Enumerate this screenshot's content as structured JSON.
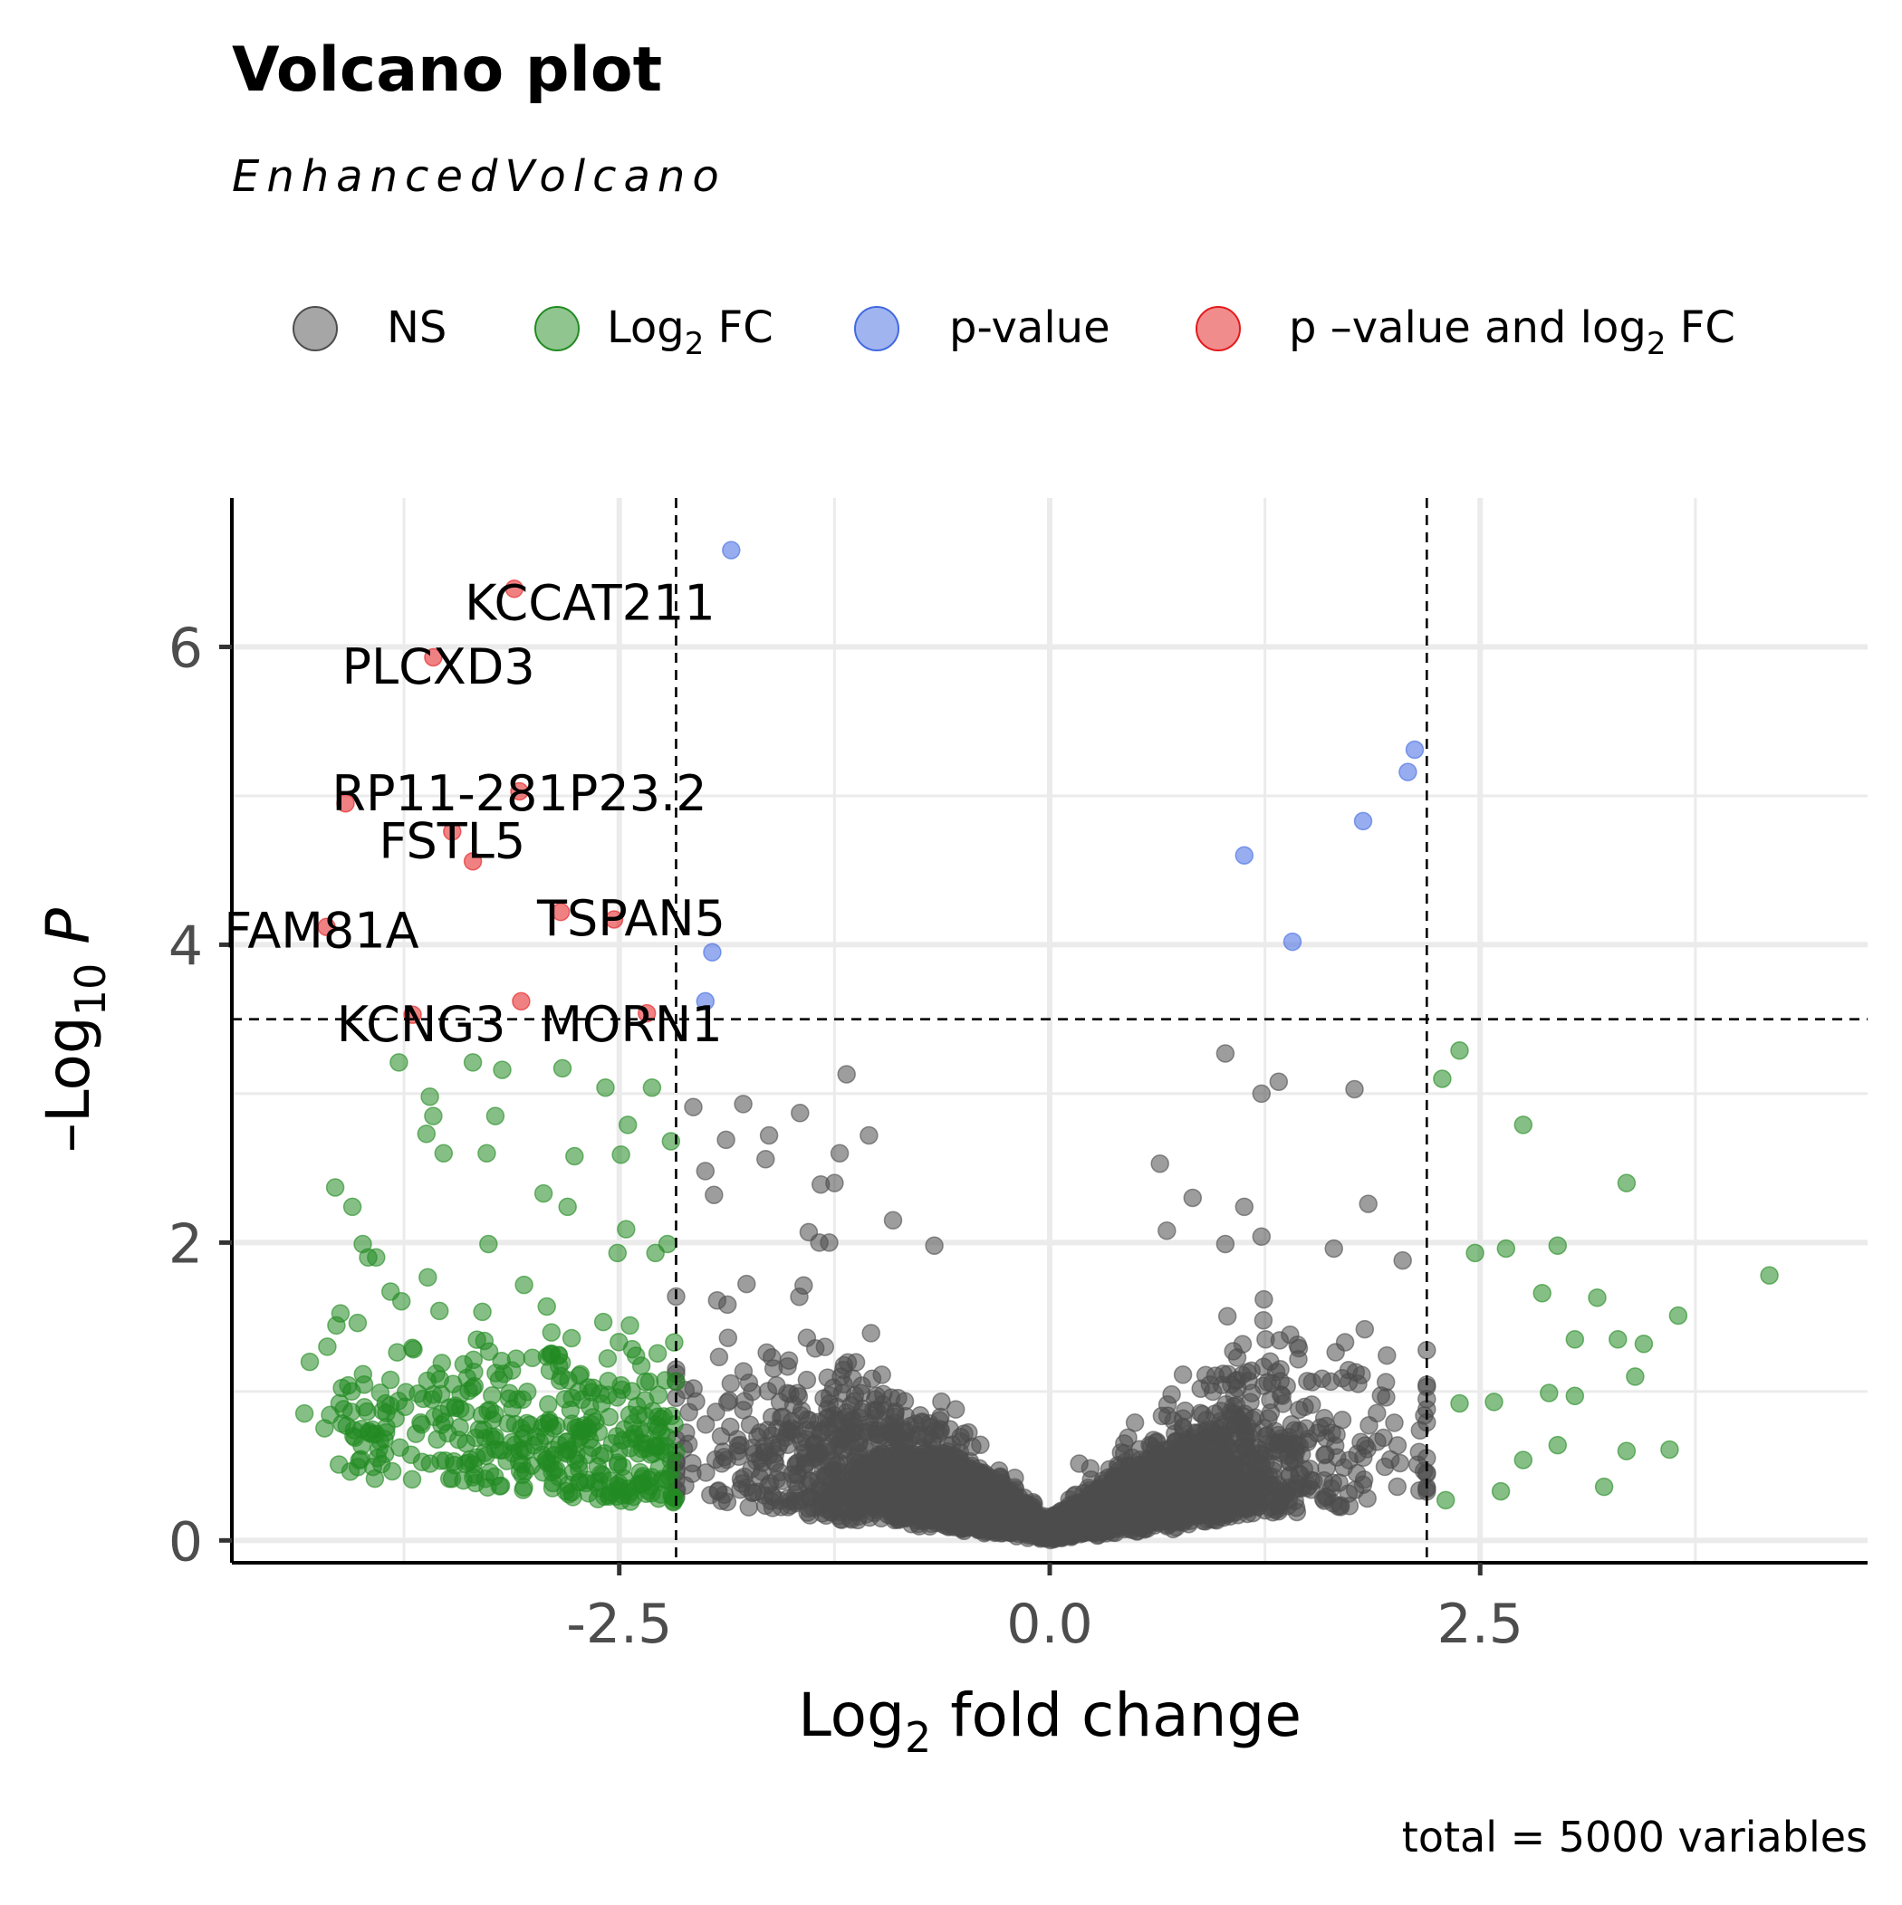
{
  "chart_data": {
    "type": "scatter",
    "title": "Volcano plot",
    "subtitle": "EnhancedVolcano",
    "caption": "total = 5000 variables",
    "xlabel": {
      "base": "Log",
      "sub": "2",
      "rest": " fold change"
    },
    "ylabel": {
      "prefix": "–Log",
      "sub": "10",
      "rest": " P"
    },
    "xlim": [
      -4.75,
      4.75
    ],
    "ylim": [
      -0.15,
      7.0
    ],
    "x_ticks": [
      {
        "value": -2.5,
        "label": "-2.5"
      },
      {
        "value": 0.0,
        "label": "0.0"
      },
      {
        "value": 2.5,
        "label": "2.5"
      }
    ],
    "y_ticks": [
      {
        "value": 0,
        "label": "0"
      },
      {
        "value": 2,
        "label": "2"
      },
      {
        "value": 4,
        "label": "4"
      },
      {
        "value": 6,
        "label": "6"
      }
    ],
    "x_minor_grid": [
      -3.75,
      -1.25,
      1.25,
      3.75
    ],
    "y_minor_grid": [
      1,
      3,
      5
    ],
    "grid": true,
    "legend_position": "top",
    "legend": [
      {
        "key": "NS",
        "base": "NS",
        "sub": "",
        "rest": "",
        "color": "#4d4d4d"
      },
      {
        "key": "FC",
        "base": "Log",
        "sub": "2",
        "rest": " FC",
        "color": "#228b22"
      },
      {
        "key": "P",
        "base": "p-value",
        "sub": "",
        "rest": "",
        "color": "#4169e1"
      },
      {
        "key": "P_FC",
        "base": "p –value and log",
        "sub": "2",
        "rest": " FC",
        "color": "#e31a1c"
      }
    ],
    "cutoffs": {
      "fc": [
        -2.17,
        2.19
      ],
      "p": 3.5
    },
    "series": [
      {
        "key": "P_FC",
        "points": [
          [
            -3.11,
            6.39
          ],
          [
            -3.58,
            5.93
          ],
          [
            -4.09,
            4.95
          ],
          [
            -3.08,
            5.03
          ],
          [
            -3.47,
            4.76
          ],
          [
            -3.35,
            4.56
          ],
          [
            -4.2,
            4.12
          ],
          [
            -2.84,
            4.22
          ],
          [
            -2.53,
            4.17
          ],
          [
            -3.07,
            3.62
          ],
          [
            -3.7,
            3.53
          ],
          [
            -2.34,
            3.54
          ]
        ]
      },
      {
        "key": "P",
        "points": [
          [
            -1.85,
            6.65
          ],
          [
            2.12,
            5.31
          ],
          [
            2.08,
            5.16
          ],
          [
            1.82,
            4.83
          ],
          [
            1.13,
            4.6
          ],
          [
            1.41,
            4.02
          ],
          [
            -1.96,
            3.95
          ],
          [
            -2.0,
            3.62
          ]
        ]
      },
      {
        "key": "FC_outliers",
        "points": [
          [
            -3.78,
            3.21
          ],
          [
            -3.35,
            3.21
          ],
          [
            -3.18,
            3.16
          ],
          [
            -2.83,
            3.17
          ],
          [
            -2.58,
            3.04
          ],
          [
            -2.31,
            3.04
          ],
          [
            -3.6,
            2.98
          ],
          [
            -3.58,
            2.85
          ],
          [
            -3.22,
            2.85
          ],
          [
            -3.62,
            2.73
          ],
          [
            -2.45,
            2.79
          ],
          [
            -2.2,
            2.68
          ],
          [
            -3.52,
            2.6
          ],
          [
            -3.27,
            2.6
          ],
          [
            -2.76,
            2.58
          ],
          [
            -2.49,
            2.59
          ],
          [
            -4.15,
            2.37
          ],
          [
            -4.05,
            2.24
          ],
          [
            -2.94,
            2.33
          ],
          [
            -2.8,
            2.24
          ],
          [
            -2.46,
            2.09
          ],
          [
            -3.99,
            1.99
          ],
          [
            -3.26,
            1.99
          ],
          [
            -2.51,
            1.93
          ],
          [
            -2.29,
            1.93
          ],
          [
            -2.22,
            1.99
          ],
          [
            2.38,
            3.29
          ],
          [
            2.28,
            3.1
          ],
          [
            2.75,
            2.79
          ],
          [
            3.35,
            2.4
          ],
          [
            2.47,
            1.93
          ],
          [
            2.65,
            1.96
          ],
          [
            2.95,
            1.98
          ],
          [
            4.18,
            1.78
          ],
          [
            2.86,
            1.66
          ],
          [
            3.18,
            1.63
          ],
          [
            3.65,
            1.51
          ],
          [
            3.05,
            1.35
          ],
          [
            3.3,
            1.35
          ],
          [
            3.45,
            1.32
          ],
          [
            3.4,
            1.1
          ],
          [
            2.38,
            0.92
          ],
          [
            2.9,
            0.99
          ],
          [
            3.05,
            0.97
          ],
          [
            2.58,
            0.93
          ],
          [
            2.95,
            0.64
          ],
          [
            3.35,
            0.6
          ],
          [
            3.6,
            0.61
          ],
          [
            2.75,
            0.54
          ],
          [
            3.22,
            0.36
          ],
          [
            2.3,
            0.27
          ],
          [
            2.62,
            0.33
          ]
        ]
      },
      {
        "key": "NS_outliers",
        "points": [
          [
            -1.18,
            3.13
          ],
          [
            -1.78,
            2.93
          ],
          [
            -1.45,
            2.87
          ],
          [
            -1.63,
            2.72
          ],
          [
            -1.05,
            2.72
          ],
          [
            -1.22,
            2.6
          ],
          [
            -2.07,
            2.91
          ],
          [
            -1.88,
            2.69
          ],
          [
            -1.65,
            2.56
          ],
          [
            1.02,
            3.27
          ],
          [
            1.23,
            3.0
          ],
          [
            1.33,
            3.08
          ],
          [
            1.77,
            3.03
          ],
          [
            0.64,
            2.53
          ],
          [
            0.83,
            2.3
          ],
          [
            1.85,
            2.26
          ],
          [
            1.13,
            2.24
          ],
          [
            0.68,
            2.08
          ],
          [
            1.23,
            2.04
          ],
          [
            1.02,
            1.99
          ],
          [
            1.65,
            1.96
          ],
          [
            2.05,
            1.88
          ],
          [
            -0.91,
            2.15
          ],
          [
            -0.67,
            1.98
          ],
          [
            -1.4,
            2.07
          ],
          [
            -1.25,
            2.4
          ],
          [
            -1.33,
            2.39
          ],
          [
            -1.95,
            2.32
          ],
          [
            -2.0,
            2.48
          ]
        ]
      }
    ],
    "labels": [
      {
        "text": "KCCAT211",
        "x": -2.67,
        "y": 6.28
      },
      {
        "text": "PLCXD3",
        "x": -3.55,
        "y": 5.85
      },
      {
        "text": "RP11-281P23.2",
        "x": -3.08,
        "y": 5.0
      },
      {
        "text": "FSTL5",
        "x": -3.47,
        "y": 4.68
      },
      {
        "text": "FAM81A",
        "x": -4.23,
        "y": 4.08
      },
      {
        "text": "TSPAN5",
        "x": -2.43,
        "y": 4.16
      },
      {
        "text": "KCNG3",
        "x": -3.65,
        "y": 3.45
      },
      {
        "text": "MORN1",
        "x": -2.43,
        "y": 3.45
      }
    ],
    "bulk_ns": {
      "count": 3700,
      "seed": 7,
      "xrange": [
        -2.17,
        2.19
      ]
    },
    "bulk_fc": {
      "count": 400,
      "seed": 11,
      "xrange": [
        -4.35,
        -2.17
      ]
    }
  }
}
